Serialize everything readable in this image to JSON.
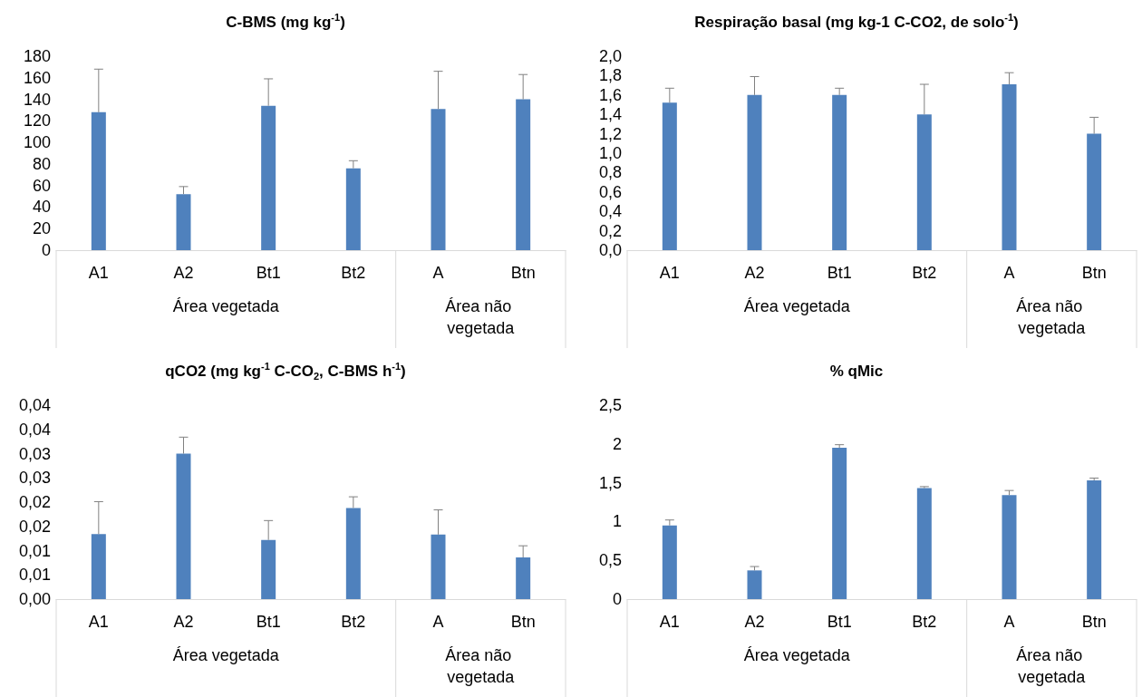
{
  "chart_data": [
    {
      "type": "bar",
      "title": "C-BMS (mg kg$^{-1}$)",
      "categories": [
        "A1",
        "A2",
        "Bt1",
        "Bt2",
        "A",
        "Btn"
      ],
      "values": [
        128,
        52,
        134,
        76,
        131,
        140
      ],
      "color": "#4f81bd",
      "errors": [
        [
          128,
          168
        ],
        [
          52,
          59
        ],
        [
          134,
          159
        ],
        [
          76,
          83
        ],
        [
          131,
          166
        ],
        [
          140,
          163
        ]
      ],
      "ylim": [
        0,
        180
      ],
      "yticks": [
        0,
        20,
        40,
        60,
        80,
        100,
        120,
        140,
        160,
        180
      ],
      "annotations": [
        "Área vegetada",
        "Área não vegetada"
      ]
    },
    {
      "type": "bar",
      "title": "Respiração basal (mg kg-1 C-CO2, de solo$^{-1}$)",
      "categories": [
        "A1",
        "A2",
        "Bt1",
        "Bt2",
        "A",
        "Btn"
      ],
      "values": [
        1.52,
        1.6,
        1.6,
        1.4,
        1.71,
        1.2
      ],
      "color": "#4f81bd",
      "errors": [
        [
          1.52,
          1.67
        ],
        [
          1.6,
          1.79
        ],
        [
          1.6,
          1.67
        ],
        [
          1.4,
          1.71
        ],
        [
          1.71,
          1.83
        ],
        [
          1.2,
          1.37
        ]
      ],
      "ylim": [
        0,
        2
      ],
      "yticks": [
        {
          "value": 0,
          "label": "0,0"
        },
        {
          "value": 0.2,
          "label": "0,2"
        },
        {
          "value": 0.4,
          "label": "0,4"
        },
        {
          "value": 0.6,
          "label": "0,6"
        },
        {
          "value": 0.8,
          "label": "0,8"
        },
        {
          "value": 1,
          "label": "1,0"
        },
        {
          "value": 1.2,
          "label": "1,2"
        },
        {
          "value": 1.4,
          "label": "1,4"
        },
        {
          "value": 1.6,
          "label": "1,6"
        },
        {
          "value": 1.8,
          "label": "1,8"
        },
        {
          "value": 2,
          "label": "2,0"
        }
      ],
      "annotations": [
        "Área vegetada",
        "Área não vegetada"
      ]
    },
    {
      "type": "bar",
      "title": "qCO2 (mg kg$^{-1}$ C-CO$_{2}$, C-BMS h$^{-1}$)",
      "categories": [
        "A1",
        "A2",
        "Bt1",
        "Bt2",
        "A",
        "Btn"
      ],
      "values": [
        0.0134,
        0.03,
        0.0122,
        0.0188,
        0.0133,
        0.0086
      ],
      "color": "#4f81bd",
      "errors": [
        [
          0.0134,
          0.0201
        ],
        [
          0.03,
          0.0334
        ],
        [
          0.0122,
          0.0162
        ],
        [
          0.0188,
          0.0211
        ],
        [
          0.0133,
          0.0184
        ],
        [
          0.0086,
          0.011
        ]
      ],
      "ylim": [
        0,
        0.04
      ],
      "yticks": [
        {
          "value": 0,
          "label": "0,00"
        },
        {
          "value": 0.005,
          "label": "0,01"
        },
        {
          "value": 0.01,
          "label": "0,01"
        },
        {
          "value": 0.015,
          "label": "0,02"
        },
        {
          "value": 0.02,
          "label": "0,02"
        },
        {
          "value": 0.025,
          "label": "0,03"
        },
        {
          "value": 0.03,
          "label": "0,03"
        },
        {
          "value": 0.035,
          "label": "0,04"
        },
        {
          "value": 0.04,
          "label": "0,04"
        }
      ],
      "annotations": [
        "Área vegetada",
        "Área não vegetada"
      ]
    },
    {
      "type": "bar",
      "title": "% qMic",
      "categories": [
        "A1",
        "A2",
        "Bt1",
        "Bt2",
        "A",
        "Btn"
      ],
      "values": [
        0.95,
        0.37,
        1.95,
        1.43,
        1.34,
        1.53
      ],
      "color": "#4f81bd",
      "errors": [
        [
          0.95,
          1.02
        ],
        [
          0.37,
          0.42
        ],
        [
          1.95,
          1.99
        ],
        [
          1.43,
          1.45
        ],
        [
          1.34,
          1.4
        ],
        [
          1.53,
          1.56
        ]
      ],
      "ylim": [
        0,
        2.5
      ],
      "yticks": [
        0,
        {
          "value": 0.5,
          "label": "0,5"
        },
        1,
        {
          "value": 1.5,
          "label": "1,5"
        },
        2,
        {
          "value": 2.5,
          "label": "2,5"
        }
      ],
      "annotations": [
        "Área vegetada",
        "Área não vegetada"
      ]
    }
  ]
}
